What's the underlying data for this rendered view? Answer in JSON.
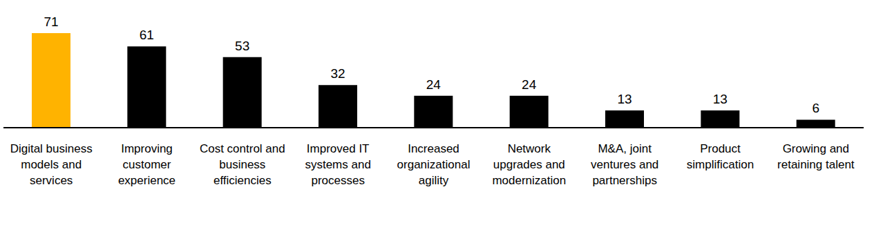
{
  "chart_data": {
    "type": "bar",
    "categories": [
      "Digital business models and services",
      "Improving customer experience",
      "Cost control and business efficiencies",
      "Improved IT systems and processes",
      "Increased organizational agility",
      "Network upgrades and modernization",
      "M&A, joint ventures and partnerships",
      "Product simplification",
      "Growing and retaining talent"
    ],
    "values": [
      71,
      61,
      53,
      32,
      24,
      24,
      13,
      13,
      6
    ],
    "colors": [
      "#FFB300",
      "#000000",
      "#000000",
      "#000000",
      "#000000",
      "#000000",
      "#000000",
      "#000000",
      "#000000"
    ],
    "ylim": [
      0,
      71
    ],
    "grid": false,
    "data_labels": true,
    "tick_labels": "x"
  }
}
